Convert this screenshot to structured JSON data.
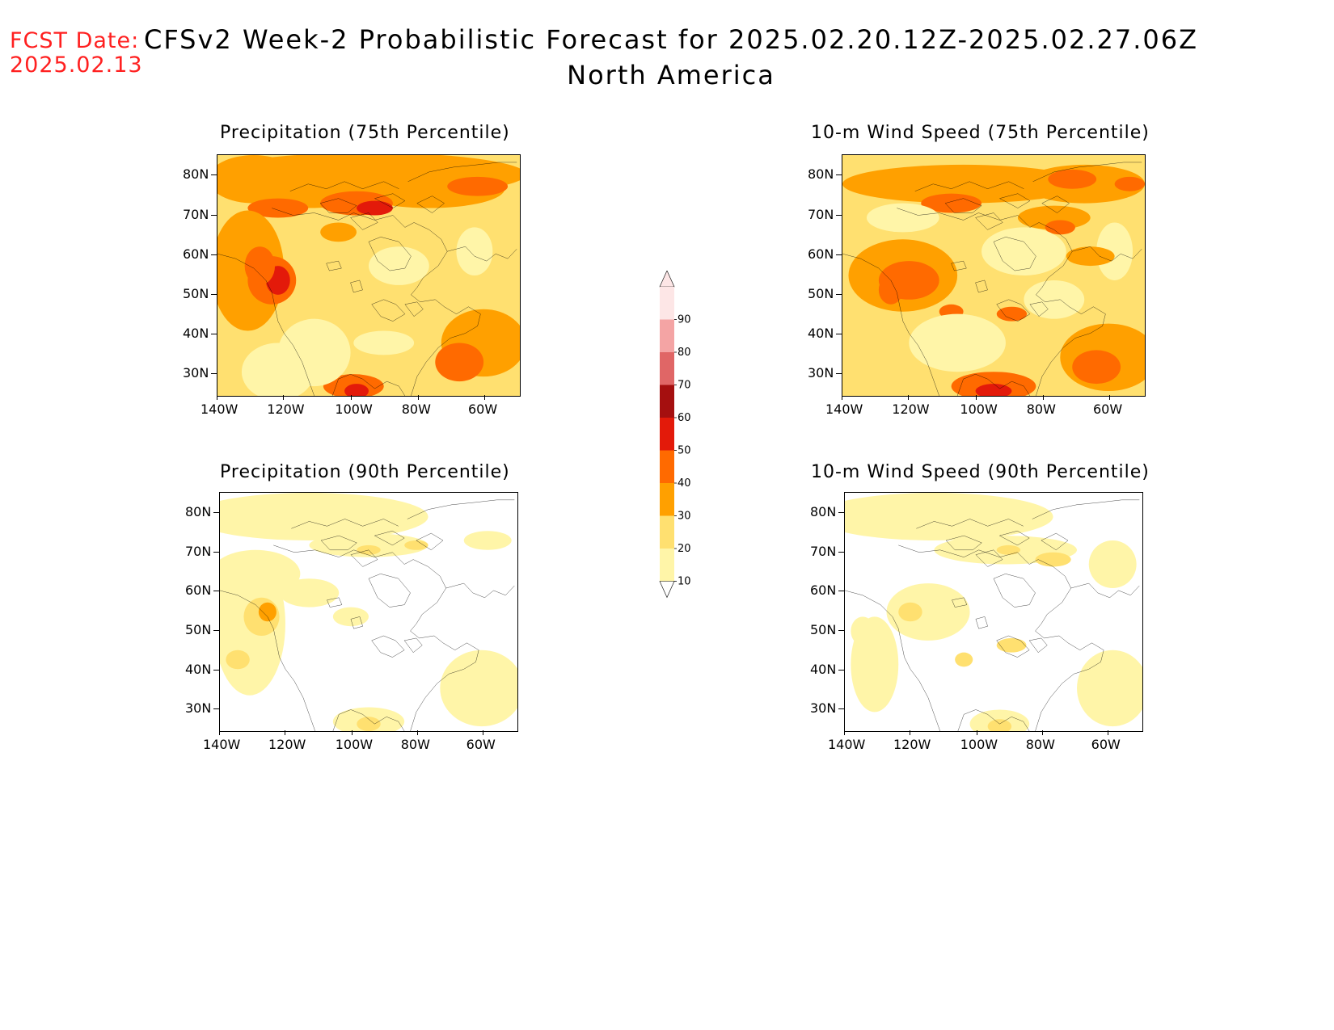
{
  "header": {
    "fcst_label": "FCST Date:",
    "fcst_date": "2025.02.13",
    "title": "CFSv2 Week-2 Probabilistic Forecast for 2025.02.20.12Z-2025.02.27.06Z",
    "subtitle": "North America"
  },
  "panels": [
    {
      "id": "p1",
      "title": "Precipitation (75th Percentile)",
      "level": "high",
      "lat_labels": [
        "80N",
        "70N",
        "60N",
        "50N",
        "40N",
        "30N"
      ],
      "lon_labels": [
        "140W",
        "120W",
        "100W",
        "80W",
        "60W"
      ]
    },
    {
      "id": "p2",
      "title": "10-m Wind Speed (75th Percentile)",
      "level": "high",
      "lat_labels": [
        "80N",
        "70N",
        "60N",
        "50N",
        "40N",
        "30N"
      ],
      "lon_labels": [
        "140W",
        "120W",
        "100W",
        "80W",
        "60W"
      ]
    },
    {
      "id": "p3",
      "title": "Precipitation (90th Percentile)",
      "level": "low",
      "lat_labels": [
        "80N",
        "70N",
        "60N",
        "50N",
        "40N",
        "30N"
      ],
      "lon_labels": [
        "140W",
        "120W",
        "100W",
        "80W",
        "60W"
      ]
    },
    {
      "id": "p4",
      "title": "10-m Wind Speed (90th Percentile)",
      "level": "low",
      "lat_labels": [
        "80N",
        "70N",
        "60N",
        "50N",
        "40N",
        "30N"
      ],
      "lon_labels": [
        "140W",
        "120W",
        "100W",
        "80W",
        "60W"
      ]
    }
  ],
  "colorbar": {
    "labels": [
      "90",
      "80",
      "70",
      "60",
      "50",
      "40",
      "30",
      "20",
      "10"
    ],
    "colors": [
      "#fde6e6",
      "#f4a4a4",
      "#e06666",
      "#a50f0f",
      "#e31a0a",
      "#ff6a00",
      "#ffa000",
      "#ffe070",
      "#fff5a8"
    ]
  }
}
